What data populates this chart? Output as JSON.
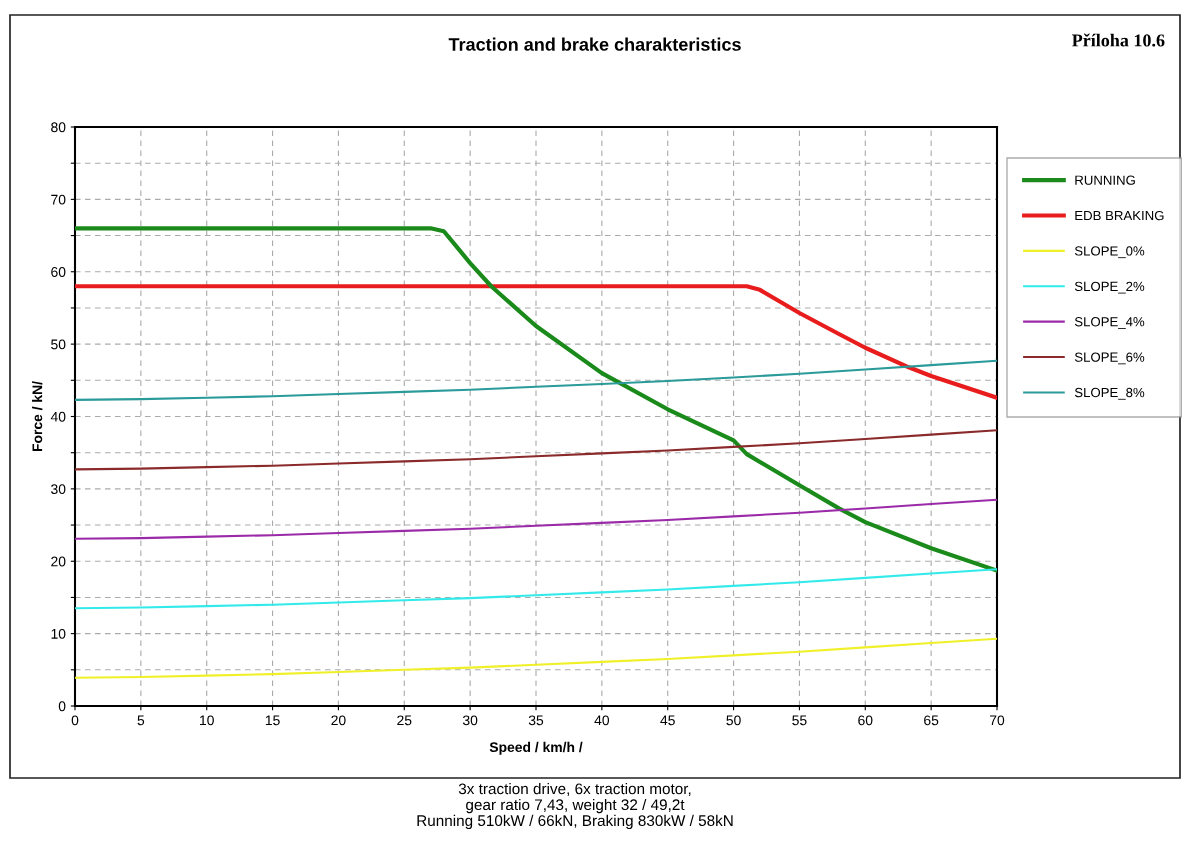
{
  "chart_data": {
    "type": "line",
    "title": "Traction and brake charakteristics",
    "subtitle": "Příloha 10.6",
    "xlabel": "Speed / km/h /",
    "ylabel": "Force / kN/",
    "annotations": [
      "3x traction drive, 6x traction motor,\ngear ratio 7,43, weight 32 / 49,2t\nRunning 510kW / 66kN, Braking 830kW / 58kN"
    ],
    "x": [
      0,
      5,
      10,
      15,
      20,
      25,
      30,
      35,
      40,
      45,
      50,
      55,
      60,
      65,
      70
    ],
    "series": [
      {
        "name": "RUNNING",
        "color": "#1a8a1a",
        "x": [
          0,
          5,
          10,
          15,
          20,
          25,
          27,
          28,
          29,
          30,
          31.6,
          35,
          40,
          45,
          50,
          51,
          55,
          58,
          60,
          65,
          70
        ],
        "values": [
          66,
          66,
          66,
          66,
          66,
          66,
          66,
          65.6,
          63.4,
          61.2,
          58,
          52.5,
          46,
          41,
          36.7,
          34.8,
          30.5,
          27.3,
          25.4,
          21.8,
          18.7
        ]
      },
      {
        "name": "EDB BRAKING",
        "color": "#e81c1c",
        "x": [
          0,
          10,
          20,
          30,
          40,
          50,
          51,
          52,
          55,
          58,
          60,
          63.3,
          65,
          70
        ],
        "values": [
          58,
          58,
          58,
          58,
          58,
          58,
          58,
          57.5,
          54.3,
          51.4,
          49.5,
          46.8,
          45.6,
          42.6
        ]
      },
      {
        "name": "SLOPE_0%",
        "color": "#f0f028",
        "values": [
          3.9,
          4.0,
          4.2,
          4.4,
          4.7,
          5.0,
          5.3,
          5.7,
          6.1,
          6.5,
          7.0,
          7.5,
          8.1,
          8.7,
          9.3
        ]
      },
      {
        "name": "SLOPE_2%",
        "color": "#33eaea",
        "values": [
          13.5,
          13.6,
          13.8,
          14.0,
          14.3,
          14.6,
          14.9,
          15.3,
          15.7,
          16.1,
          16.6,
          17.1,
          17.7,
          18.3,
          18.9
        ]
      },
      {
        "name": "SLOPE_4%",
        "color": "#9b2aa8",
        "values": [
          23.1,
          23.2,
          23.4,
          23.6,
          23.9,
          24.2,
          24.5,
          24.9,
          25.3,
          25.7,
          26.2,
          26.7,
          27.3,
          27.9,
          28.5
        ]
      },
      {
        "name": "SLOPE_6%",
        "color": "#8b2a2a",
        "values": [
          32.7,
          32.8,
          33.0,
          33.2,
          33.5,
          33.8,
          34.1,
          34.5,
          34.9,
          35.3,
          35.8,
          36.3,
          36.9,
          37.5,
          38.1
        ]
      },
      {
        "name": "SLOPE_8%",
        "color": "#2a9a9a",
        "values": [
          42.3,
          42.4,
          42.6,
          42.8,
          43.1,
          43.4,
          43.7,
          44.1,
          44.5,
          44.9,
          45.4,
          45.9,
          46.5,
          47.1,
          47.7
        ]
      }
    ],
    "xlim": [
      0,
      70
    ],
    "xticks": [
      0,
      5,
      10,
      15,
      20,
      25,
      30,
      35,
      40,
      45,
      50,
      55,
      60,
      65,
      70
    ],
    "ylim": [
      0,
      80
    ],
    "yticks": [
      0,
      {
        "value": 5,
        "label": null
      },
      10,
      {
        "value": 15,
        "label": null
      },
      20,
      {
        "value": 25,
        "label": null
      },
      30,
      {
        "value": 35,
        "label": null
      },
      40,
      {
        "value": 45,
        "label": null
      },
      50,
      {
        "value": 55,
        "label": null
      },
      60,
      {
        "value": 65,
        "label": null
      },
      70,
      {
        "value": 75,
        "label": null
      },
      80
    ],
    "grid": true,
    "legend": "right",
    "line_style": "solid",
    "marker": "none"
  }
}
